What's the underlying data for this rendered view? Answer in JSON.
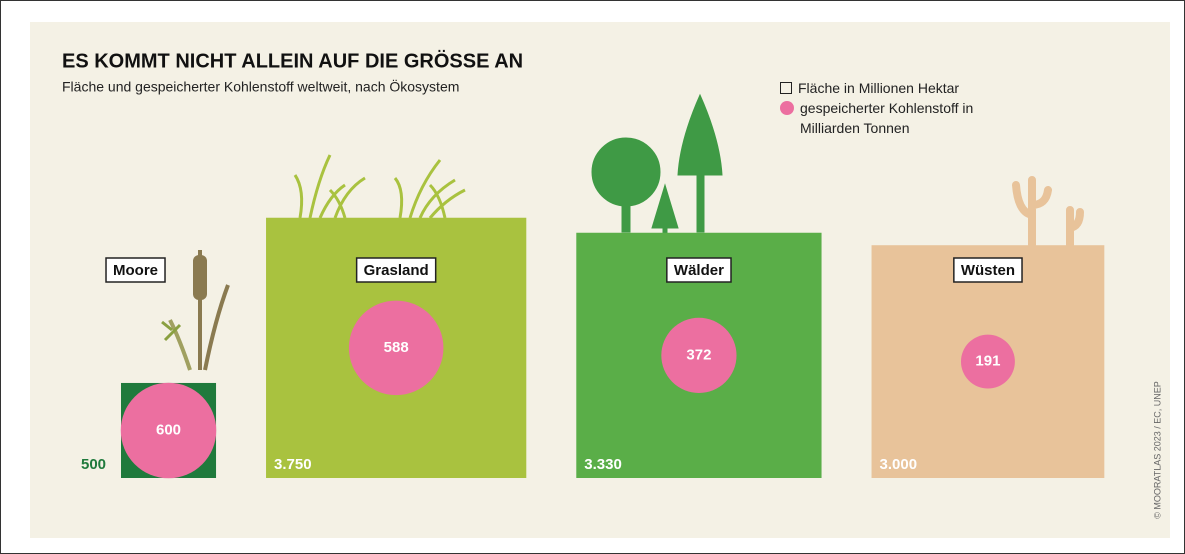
{
  "chart_data": {
    "type": "proportional-squares",
    "title": "ES KOMMT NICHT ALLEIN AUF DIE GRÖSSE AN",
    "subtitle": "Fläche und gespeicherter Kohlenstoff weltweit, nach Ökosystem",
    "categories": [
      "Moore",
      "Grasland",
      "Wälder",
      "Wüsten"
    ],
    "series": [
      {
        "name": "Fläche in Millionen Hektar",
        "colors": [
          "#1f7a3c",
          "#a9c23f",
          "#5aae48",
          "#e8c39a"
        ],
        "values": [
          500,
          3750,
          3330,
          3000
        ],
        "value_labels": [
          "500",
          "3.750",
          "3.330",
          "3.000"
        ]
      },
      {
        "name": "gespeicherter Kohlenstoff in Milliarden Tonnen",
        "color": "#ec6fa0",
        "values": [
          600,
          588,
          372,
          191
        ]
      }
    ],
    "source": "© MOORATLAS 2023 / EC, UNEP"
  }
}
